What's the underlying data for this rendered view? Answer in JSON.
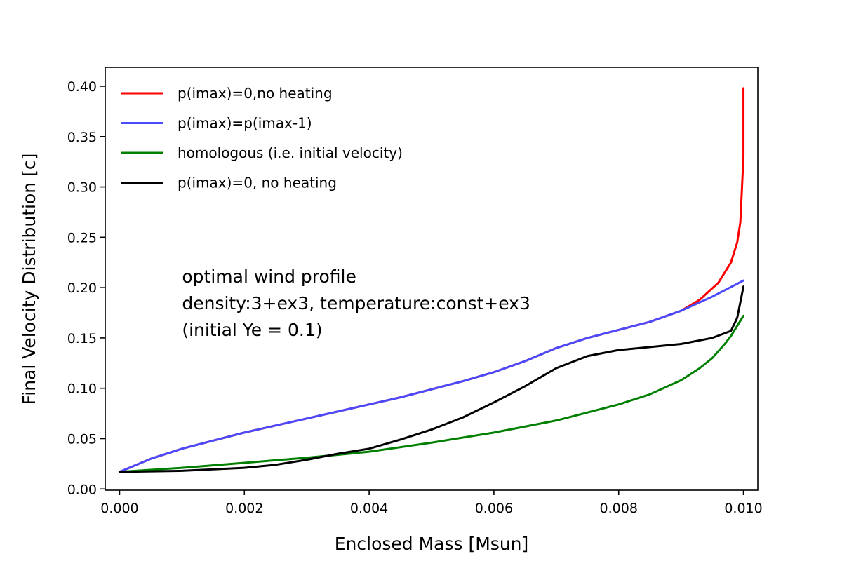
{
  "chart_data": {
    "type": "line",
    "title": "",
    "xlabel": "Enclosed Mass [Msun]",
    "ylabel": "Final Velocity Distribution [c]",
    "xlim": [
      -0.00023,
      0.01023
    ],
    "ylim": [
      -0.0012,
      0.4188
    ],
    "x_ticks": [
      0.0,
      0.002,
      0.004,
      0.006,
      0.008,
      0.01
    ],
    "x_tick_labels": [
      "0.000",
      "0.002",
      "0.004",
      "0.006",
      "0.008",
      "0.010"
    ],
    "y_ticks": [
      0.0,
      0.05,
      0.1,
      0.15,
      0.2,
      0.25,
      0.3,
      0.35,
      0.4
    ],
    "y_tick_labels": [
      "0.00",
      "0.05",
      "0.10",
      "0.15",
      "0.20",
      "0.25",
      "0.30",
      "0.35",
      "0.40"
    ],
    "grid": false,
    "legend_position": "top-left",
    "annotation": {
      "lines": [
        "optimal wind profile",
        "density:3+ex3, temperature:const+ex3",
        "(initial Ye = 0.1)"
      ],
      "x": 0.001,
      "y": 0.2
    },
    "series": [
      {
        "name": "p(imax)=0,no heating",
        "color": "#ff0000",
        "x": [
          0.0,
          0.0005,
          0.001,
          0.0015,
          0.002,
          0.0025,
          0.003,
          0.0035,
          0.004,
          0.0045,
          0.005,
          0.0055,
          0.006,
          0.0065,
          0.007,
          0.0075,
          0.008,
          0.0085,
          0.009,
          0.0093,
          0.0096,
          0.0098,
          0.0099,
          0.00995,
          0.01,
          0.01
        ],
        "y": [
          0.017,
          0.03,
          0.04,
          0.048,
          0.056,
          0.063,
          0.07,
          0.077,
          0.084,
          0.091,
          0.099,
          0.107,
          0.116,
          0.127,
          0.14,
          0.15,
          0.158,
          0.166,
          0.177,
          0.188,
          0.205,
          0.225,
          0.245,
          0.265,
          0.33,
          0.398
        ]
      },
      {
        "name": "p(imax)=p(imax-1)",
        "color": "#4a4aff",
        "x": [
          0.0,
          0.0005,
          0.001,
          0.0015,
          0.002,
          0.0025,
          0.003,
          0.0035,
          0.004,
          0.0045,
          0.005,
          0.0055,
          0.006,
          0.0065,
          0.007,
          0.0075,
          0.008,
          0.0085,
          0.009,
          0.0095,
          0.01
        ],
        "y": [
          0.017,
          0.03,
          0.04,
          0.048,
          0.056,
          0.063,
          0.07,
          0.077,
          0.084,
          0.091,
          0.099,
          0.107,
          0.116,
          0.127,
          0.14,
          0.15,
          0.158,
          0.166,
          0.177,
          0.191,
          0.207
        ]
      },
      {
        "name": "homologous (i.e. initial velocity)",
        "color": "#008000",
        "x": [
          0.0,
          0.001,
          0.002,
          0.003,
          0.004,
          0.005,
          0.006,
          0.007,
          0.008,
          0.0085,
          0.009,
          0.0093,
          0.0095,
          0.0097,
          0.0098,
          0.0099,
          0.01
        ],
        "y": [
          0.017,
          0.021,
          0.026,
          0.031,
          0.037,
          0.046,
          0.056,
          0.068,
          0.084,
          0.094,
          0.108,
          0.12,
          0.13,
          0.144,
          0.152,
          0.162,
          0.172
        ]
      },
      {
        "name": "p(imax)=0, no heating",
        "color": "#000000",
        "x": [
          0.0,
          0.001,
          0.002,
          0.0025,
          0.003,
          0.0035,
          0.004,
          0.0045,
          0.005,
          0.0055,
          0.006,
          0.0065,
          0.007,
          0.0075,
          0.008,
          0.0085,
          0.009,
          0.0095,
          0.0098,
          0.0099,
          0.01
        ],
        "y": [
          0.017,
          0.018,
          0.021,
          0.024,
          0.029,
          0.035,
          0.04,
          0.049,
          0.059,
          0.071,
          0.086,
          0.102,
          0.12,
          0.132,
          0.138,
          0.141,
          0.144,
          0.15,
          0.157,
          0.17,
          0.201
        ]
      }
    ]
  }
}
